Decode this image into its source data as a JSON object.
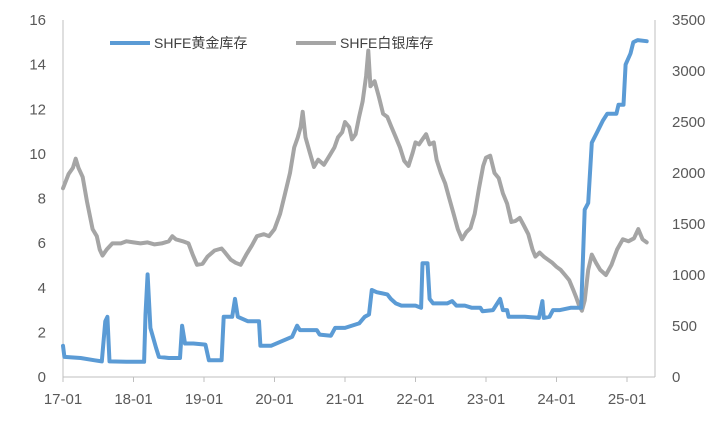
{
  "chart_data": {
    "type": "line",
    "title": "",
    "xlabel": "",
    "ylabel": "",
    "grid": false,
    "legend_position": "top-center",
    "x_tick_labels": [
      "17-01",
      "18-01",
      "19-01",
      "20-01",
      "21-01",
      "22-01",
      "23-01",
      "24-01",
      "25-01"
    ],
    "y_left": {
      "min": 0,
      "max": 16,
      "ticks": [
        0,
        2,
        4,
        6,
        8,
        10,
        12,
        14,
        16
      ]
    },
    "y_right": {
      "min": 0,
      "max": 3500,
      "ticks": [
        0,
        500,
        1000,
        1500,
        2000,
        2500,
        3000,
        3500
      ]
    },
    "series": [
      {
        "name": "SHFE黄金库存",
        "axis": "left",
        "color": "#5b9bd5",
        "points": [
          [
            2017.0,
            1.4
          ],
          [
            2017.02,
            0.9
          ],
          [
            2017.25,
            0.85
          ],
          [
            2017.45,
            0.75
          ],
          [
            2017.55,
            0.7
          ],
          [
            2017.6,
            2.5
          ],
          [
            2017.63,
            2.7
          ],
          [
            2017.66,
            0.7
          ],
          [
            2017.9,
            0.68
          ],
          [
            2018.15,
            0.68
          ],
          [
            2018.17,
            2.8
          ],
          [
            2018.2,
            4.6
          ],
          [
            2018.24,
            2.2
          ],
          [
            2018.32,
            1.3
          ],
          [
            2018.36,
            0.9
          ],
          [
            2018.5,
            0.85
          ],
          [
            2018.66,
            0.85
          ],
          [
            2018.69,
            2.3
          ],
          [
            2018.73,
            1.5
          ],
          [
            2018.85,
            1.5
          ],
          [
            2019.02,
            1.45
          ],
          [
            2019.07,
            0.75
          ],
          [
            2019.25,
            0.75
          ],
          [
            2019.28,
            2.7
          ],
          [
            2019.4,
            2.7
          ],
          [
            2019.44,
            3.5
          ],
          [
            2019.48,
            2.7
          ],
          [
            2019.62,
            2.5
          ],
          [
            2019.68,
            2.5
          ],
          [
            2019.78,
            2.5
          ],
          [
            2019.8,
            1.4
          ],
          [
            2019.95,
            1.4
          ],
          [
            2020.1,
            1.6
          ],
          [
            2020.25,
            1.8
          ],
          [
            2020.32,
            2.3
          ],
          [
            2020.36,
            2.1
          ],
          [
            2020.6,
            2.1
          ],
          [
            2020.64,
            1.9
          ],
          [
            2020.8,
            1.85
          ],
          [
            2020.86,
            2.2
          ],
          [
            2021.0,
            2.2
          ],
          [
            2021.2,
            2.4
          ],
          [
            2021.28,
            2.7
          ],
          [
            2021.34,
            2.8
          ],
          [
            2021.38,
            3.9
          ],
          [
            2021.45,
            3.8
          ],
          [
            2021.6,
            3.7
          ],
          [
            2021.65,
            3.5
          ],
          [
            2021.72,
            3.3
          ],
          [
            2021.8,
            3.2
          ],
          [
            2022.0,
            3.2
          ],
          [
            2022.08,
            3.1
          ],
          [
            2022.1,
            5.1
          ],
          [
            2022.17,
            5.1
          ],
          [
            2022.2,
            3.5
          ],
          [
            2022.25,
            3.3
          ],
          [
            2022.45,
            3.3
          ],
          [
            2022.52,
            3.4
          ],
          [
            2022.58,
            3.2
          ],
          [
            2022.7,
            3.2
          ],
          [
            2022.8,
            3.1
          ],
          [
            2022.92,
            3.1
          ],
          [
            2022.95,
            2.95
          ],
          [
            2023.1,
            3.0
          ],
          [
            2023.2,
            3.5
          ],
          [
            2023.24,
            3.0
          ],
          [
            2023.3,
            3.0
          ],
          [
            2023.32,
            2.7
          ],
          [
            2023.55,
            2.7
          ],
          [
            2023.75,
            2.65
          ],
          [
            2023.8,
            3.4
          ],
          [
            2023.82,
            2.65
          ],
          [
            2023.9,
            2.7
          ],
          [
            2023.95,
            3.0
          ],
          [
            2024.05,
            3.0
          ],
          [
            2024.2,
            3.1
          ],
          [
            2024.35,
            3.1
          ],
          [
            2024.4,
            7.5
          ],
          [
            2024.45,
            7.8
          ],
          [
            2024.5,
            10.5
          ],
          [
            2024.58,
            11.0
          ],
          [
            2024.66,
            11.5
          ],
          [
            2024.72,
            11.8
          ],
          [
            2024.85,
            11.8
          ],
          [
            2024.88,
            12.2
          ],
          [
            2024.95,
            12.2
          ],
          [
            2024.98,
            14.0
          ],
          [
            2025.05,
            14.5
          ],
          [
            2025.09,
            15.0
          ],
          [
            2025.15,
            15.1
          ],
          [
            2025.28,
            15.05
          ]
        ]
      },
      {
        "name": "SHFE白银库存",
        "axis": "right",
        "color": "#a5a5a5",
        "points": [
          [
            2017.0,
            1850
          ],
          [
            2017.04,
            1920
          ],
          [
            2017.08,
            1990
          ],
          [
            2017.14,
            2050
          ],
          [
            2017.18,
            2140
          ],
          [
            2017.22,
            2050
          ],
          [
            2017.28,
            1960
          ],
          [
            2017.34,
            1720
          ],
          [
            2017.42,
            1450
          ],
          [
            2017.48,
            1380
          ],
          [
            2017.52,
            1250
          ],
          [
            2017.56,
            1190
          ],
          [
            2017.62,
            1250
          ],
          [
            2017.7,
            1310
          ],
          [
            2017.82,
            1310
          ],
          [
            2017.9,
            1330
          ],
          [
            2018.0,
            1320
          ],
          [
            2018.1,
            1310
          ],
          [
            2018.2,
            1320
          ],
          [
            2018.3,
            1300
          ],
          [
            2018.4,
            1310
          ],
          [
            2018.5,
            1330
          ],
          [
            2018.55,
            1380
          ],
          [
            2018.6,
            1350
          ],
          [
            2018.7,
            1330
          ],
          [
            2018.78,
            1310
          ],
          [
            2018.84,
            1200
          ],
          [
            2018.9,
            1100
          ],
          [
            2018.98,
            1110
          ],
          [
            2019.05,
            1180
          ],
          [
            2019.15,
            1240
          ],
          [
            2019.25,
            1260
          ],
          [
            2019.3,
            1220
          ],
          [
            2019.38,
            1150
          ],
          [
            2019.45,
            1120
          ],
          [
            2019.52,
            1100
          ],
          [
            2019.6,
            1200
          ],
          [
            2019.68,
            1290
          ],
          [
            2019.75,
            1380
          ],
          [
            2019.85,
            1400
          ],
          [
            2019.92,
            1380
          ],
          [
            2020.0,
            1450
          ],
          [
            2020.08,
            1600
          ],
          [
            2020.15,
            1800
          ],
          [
            2020.22,
            2000
          ],
          [
            2020.28,
            2250
          ],
          [
            2020.33,
            2350
          ],
          [
            2020.37,
            2450
          ],
          [
            2020.4,
            2600
          ],
          [
            2020.44,
            2350
          ],
          [
            2020.5,
            2200
          ],
          [
            2020.56,
            2060
          ],
          [
            2020.62,
            2130
          ],
          [
            2020.7,
            2080
          ],
          [
            2020.78,
            2170
          ],
          [
            2020.85,
            2250
          ],
          [
            2020.9,
            2350
          ],
          [
            2020.96,
            2400
          ],
          [
            2021.0,
            2500
          ],
          [
            2021.06,
            2450
          ],
          [
            2021.1,
            2330
          ],
          [
            2021.15,
            2380
          ],
          [
            2021.2,
            2550
          ],
          [
            2021.25,
            2700
          ],
          [
            2021.3,
            2950
          ],
          [
            2021.33,
            3200
          ],
          [
            2021.36,
            2850
          ],
          [
            2021.42,
            2900
          ],
          [
            2021.48,
            2750
          ],
          [
            2021.54,
            2580
          ],
          [
            2021.6,
            2550
          ],
          [
            2021.66,
            2450
          ],
          [
            2021.72,
            2350
          ],
          [
            2021.78,
            2250
          ],
          [
            2021.84,
            2120
          ],
          [
            2021.9,
            2070
          ],
          [
            2021.96,
            2200
          ],
          [
            2022.0,
            2300
          ],
          [
            2022.05,
            2280
          ],
          [
            2022.1,
            2330
          ],
          [
            2022.15,
            2380
          ],
          [
            2022.2,
            2280
          ],
          [
            2022.26,
            2300
          ],
          [
            2022.3,
            2130
          ],
          [
            2022.36,
            2000
          ],
          [
            2022.42,
            1900
          ],
          [
            2022.48,
            1750
          ],
          [
            2022.54,
            1600
          ],
          [
            2022.6,
            1450
          ],
          [
            2022.66,
            1350
          ],
          [
            2022.72,
            1420
          ],
          [
            2022.78,
            1460
          ],
          [
            2022.84,
            1600
          ],
          [
            2022.9,
            1850
          ],
          [
            2022.96,
            2070
          ],
          [
            2023.0,
            2150
          ],
          [
            2023.06,
            2170
          ],
          [
            2023.12,
            2000
          ],
          [
            2023.18,
            1950
          ],
          [
            2023.24,
            1800
          ],
          [
            2023.3,
            1700
          ],
          [
            2023.36,
            1520
          ],
          [
            2023.42,
            1530
          ],
          [
            2023.48,
            1560
          ],
          [
            2023.54,
            1480
          ],
          [
            2023.6,
            1400
          ],
          [
            2023.66,
            1250
          ],
          [
            2023.7,
            1180
          ],
          [
            2023.76,
            1220
          ],
          [
            2023.82,
            1180
          ],
          [
            2023.88,
            1150
          ],
          [
            2023.94,
            1120
          ],
          [
            2024.0,
            1080
          ],
          [
            2024.06,
            1050
          ],
          [
            2024.12,
            1000
          ],
          [
            2024.18,
            950
          ],
          [
            2024.24,
            850
          ],
          [
            2024.28,
            780
          ],
          [
            2024.32,
            700
          ],
          [
            2024.36,
            650
          ],
          [
            2024.4,
            750
          ],
          [
            2024.45,
            1050
          ],
          [
            2024.5,
            1200
          ],
          [
            2024.56,
            1120
          ],
          [
            2024.62,
            1050
          ],
          [
            2024.7,
            1000
          ],
          [
            2024.78,
            1100
          ],
          [
            2024.86,
            1250
          ],
          [
            2024.94,
            1350
          ],
          [
            2025.02,
            1330
          ],
          [
            2025.1,
            1360
          ],
          [
            2025.16,
            1450
          ],
          [
            2025.22,
            1350
          ],
          [
            2025.28,
            1320
          ]
        ]
      }
    ]
  }
}
